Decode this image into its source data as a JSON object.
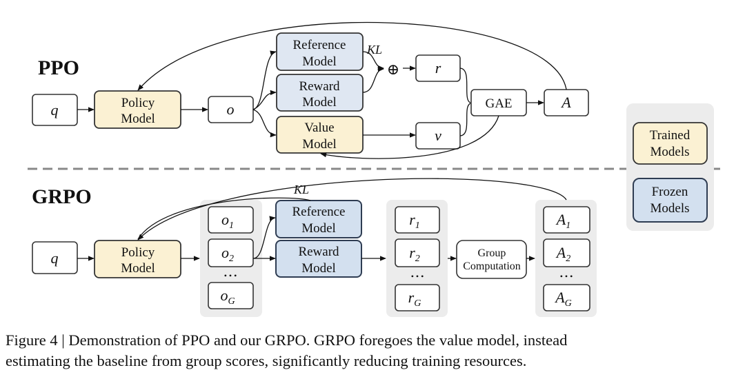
{
  "ppo": {
    "title": "PPO",
    "q": "q",
    "policy": [
      "Policy",
      "Model"
    ],
    "o": "o",
    "reference": [
      "Reference",
      "Model"
    ],
    "reward": [
      "Reward",
      "Model"
    ],
    "value": [
      "Value",
      "Model"
    ],
    "kl": "KL",
    "plus": "⊕",
    "r": "r",
    "v": "v",
    "gae": "GAE",
    "a": "A"
  },
  "grpo": {
    "title": "GRPO",
    "q": "q",
    "policy": [
      "Policy",
      "Model"
    ],
    "outputs": [
      {
        "base": "o",
        "sub": "1"
      },
      {
        "base": "o",
        "sub": "2"
      },
      {
        "base": "o",
        "sub": "G"
      }
    ],
    "reference": [
      "Reference",
      "Model"
    ],
    "reward": [
      "Reward",
      "Model"
    ],
    "kl": "KL",
    "rewards": [
      {
        "base": "r",
        "sub": "1"
      },
      {
        "base": "r",
        "sub": "2"
      },
      {
        "base": "r",
        "sub": "G"
      }
    ],
    "group": [
      "Group",
      "Computation"
    ],
    "advantages": [
      {
        "base": "A",
        "sub": "1"
      },
      {
        "base": "A",
        "sub": "2"
      },
      {
        "base": "A",
        "sub": "G"
      }
    ],
    "ellipsis": "• • •"
  },
  "legend": {
    "trained": [
      "Trained",
      "Models"
    ],
    "frozen": [
      "Frozen",
      "Models"
    ]
  },
  "colors": {
    "trained": "#fbf1d3",
    "frozen": "#dfe7f2"
  },
  "caption": [
    "Figure 4 | Demonstration of PPO and our GRPO. GRPO foregoes the value model, instead",
    "estimating the baseline from group scores, significantly reducing training resources."
  ]
}
